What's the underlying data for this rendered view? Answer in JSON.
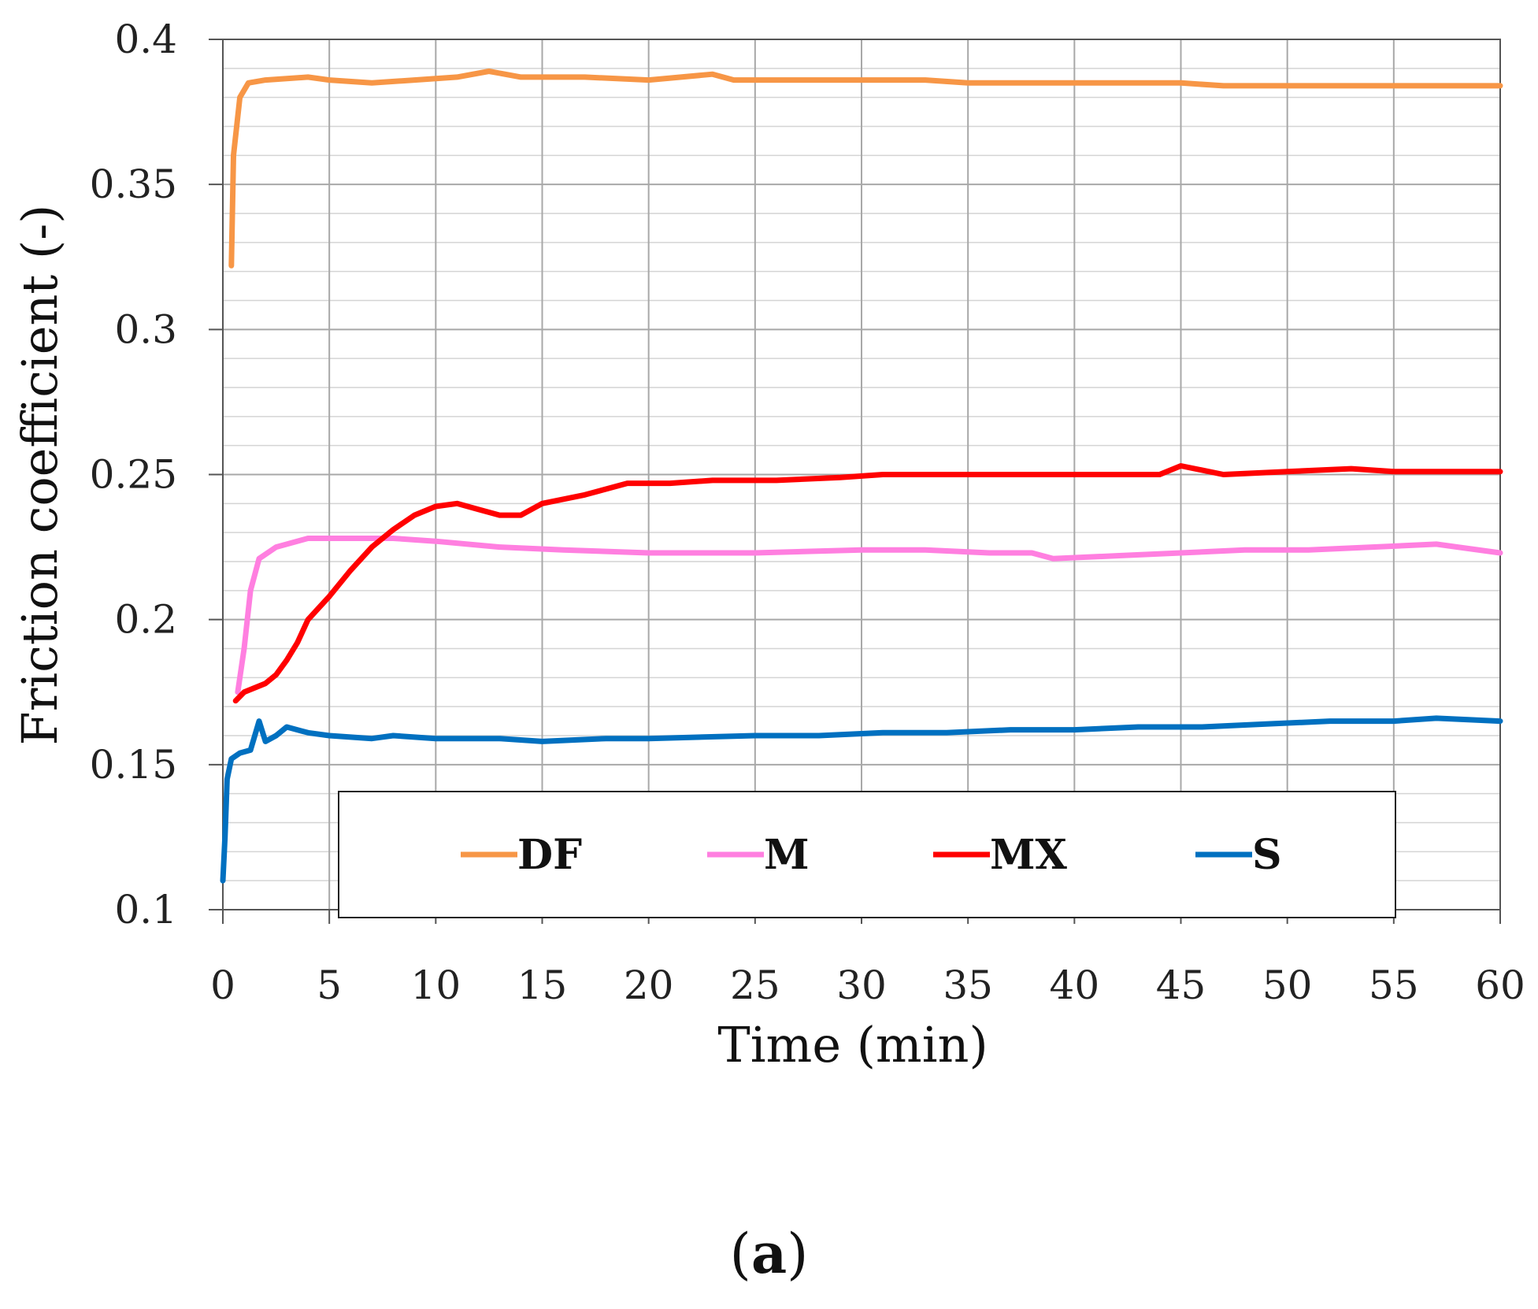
{
  "chart_data": {
    "type": "line",
    "title": "",
    "xlabel": "Time (min)",
    "ylabel": "Friction coefficient (-)",
    "xlim": [
      0,
      60
    ],
    "ylim": [
      0.1,
      0.4
    ],
    "xticks": [
      0,
      5,
      10,
      15,
      20,
      25,
      30,
      35,
      40,
      45,
      50,
      55,
      60
    ],
    "yticks": [
      0.1,
      0.15,
      0.2,
      0.25,
      0.3,
      0.35,
      0.4
    ],
    "ytick_labels": [
      "0.1",
      "0.15",
      "0.2",
      "0.25",
      "0.3",
      "0.35",
      "0.4"
    ],
    "grid": true,
    "legend_position": "bottom-inside",
    "series": [
      {
        "name": "DF",
        "color": "#f79646",
        "points": [
          [
            0.4,
            0.322
          ],
          [
            0.5,
            0.36
          ],
          [
            0.8,
            0.38
          ],
          [
            1.2,
            0.385
          ],
          [
            2,
            0.386
          ],
          [
            4,
            0.387
          ],
          [
            5,
            0.386
          ],
          [
            7,
            0.385
          ],
          [
            9,
            0.386
          ],
          [
            11,
            0.387
          ],
          [
            12.5,
            0.389
          ],
          [
            14,
            0.387
          ],
          [
            17,
            0.387
          ],
          [
            20,
            0.386
          ],
          [
            23,
            0.388
          ],
          [
            24,
            0.386
          ],
          [
            27,
            0.386
          ],
          [
            30,
            0.386
          ],
          [
            33,
            0.386
          ],
          [
            35,
            0.385
          ],
          [
            38,
            0.385
          ],
          [
            41,
            0.385
          ],
          [
            44,
            0.385
          ],
          [
            45,
            0.385
          ],
          [
            47,
            0.384
          ],
          [
            50,
            0.384
          ],
          [
            53,
            0.384
          ],
          [
            56,
            0.384
          ],
          [
            58,
            0.384
          ],
          [
            60,
            0.384
          ]
        ]
      },
      {
        "name": "M",
        "color": "#ff7fe0",
        "points": [
          [
            0.7,
            0.175
          ],
          [
            1,
            0.19
          ],
          [
            1.3,
            0.21
          ],
          [
            1.7,
            0.221
          ],
          [
            2.5,
            0.225
          ],
          [
            4,
            0.228
          ],
          [
            5,
            0.228
          ],
          [
            8,
            0.228
          ],
          [
            10,
            0.227
          ],
          [
            13,
            0.225
          ],
          [
            16,
            0.224
          ],
          [
            20,
            0.223
          ],
          [
            22,
            0.223
          ],
          [
            25,
            0.223
          ],
          [
            30,
            0.224
          ],
          [
            33,
            0.224
          ],
          [
            36,
            0.223
          ],
          [
            38,
            0.223
          ],
          [
            39,
            0.221
          ],
          [
            42,
            0.222
          ],
          [
            45,
            0.223
          ],
          [
            48,
            0.224
          ],
          [
            51,
            0.224
          ],
          [
            54,
            0.225
          ],
          [
            57,
            0.226
          ],
          [
            58,
            0.225
          ],
          [
            60,
            0.223
          ]
        ]
      },
      {
        "name": "MX",
        "color": "#ff0000",
        "points": [
          [
            0.6,
            0.172
          ],
          [
            1,
            0.175
          ],
          [
            2,
            0.178
          ],
          [
            2.5,
            0.181
          ],
          [
            3,
            0.186
          ],
          [
            3.5,
            0.192
          ],
          [
            4,
            0.2
          ],
          [
            5,
            0.208
          ],
          [
            6,
            0.217
          ],
          [
            7,
            0.225
          ],
          [
            8,
            0.231
          ],
          [
            9,
            0.236
          ],
          [
            10,
            0.239
          ],
          [
            11,
            0.24
          ],
          [
            12,
            0.238
          ],
          [
            13,
            0.236
          ],
          [
            14,
            0.236
          ],
          [
            15,
            0.24
          ],
          [
            17,
            0.243
          ],
          [
            19,
            0.247
          ],
          [
            21,
            0.247
          ],
          [
            23,
            0.248
          ],
          [
            26,
            0.248
          ],
          [
            29,
            0.249
          ],
          [
            31,
            0.25
          ],
          [
            33,
            0.25
          ],
          [
            35,
            0.25
          ],
          [
            38,
            0.25
          ],
          [
            41,
            0.25
          ],
          [
            44,
            0.25
          ],
          [
            45,
            0.253
          ],
          [
            47,
            0.25
          ],
          [
            50,
            0.251
          ],
          [
            53,
            0.252
          ],
          [
            55,
            0.251
          ],
          [
            58,
            0.251
          ],
          [
            60,
            0.251
          ]
        ]
      },
      {
        "name": "S",
        "color": "#0070c0",
        "points": [
          [
            0,
            0.11
          ],
          [
            0.1,
            0.125
          ],
          [
            0.2,
            0.145
          ],
          [
            0.4,
            0.152
          ],
          [
            0.8,
            0.154
          ],
          [
            1.3,
            0.155
          ],
          [
            1.7,
            0.165
          ],
          [
            2,
            0.158
          ],
          [
            2.5,
            0.16
          ],
          [
            3,
            0.163
          ],
          [
            4,
            0.161
          ],
          [
            5,
            0.16
          ],
          [
            7,
            0.159
          ],
          [
            8,
            0.16
          ],
          [
            10,
            0.159
          ],
          [
            13,
            0.159
          ],
          [
            15,
            0.158
          ],
          [
            18,
            0.159
          ],
          [
            20,
            0.159
          ],
          [
            25,
            0.16
          ],
          [
            28,
            0.16
          ],
          [
            31,
            0.161
          ],
          [
            34,
            0.161
          ],
          [
            37,
            0.162
          ],
          [
            40,
            0.162
          ],
          [
            43,
            0.163
          ],
          [
            46,
            0.163
          ],
          [
            49,
            0.164
          ],
          [
            52,
            0.165
          ],
          [
            55,
            0.165
          ],
          [
            57,
            0.166
          ],
          [
            60,
            0.165
          ]
        ]
      }
    ]
  },
  "caption": {
    "open": "(",
    "label": "a",
    "close": ")"
  }
}
